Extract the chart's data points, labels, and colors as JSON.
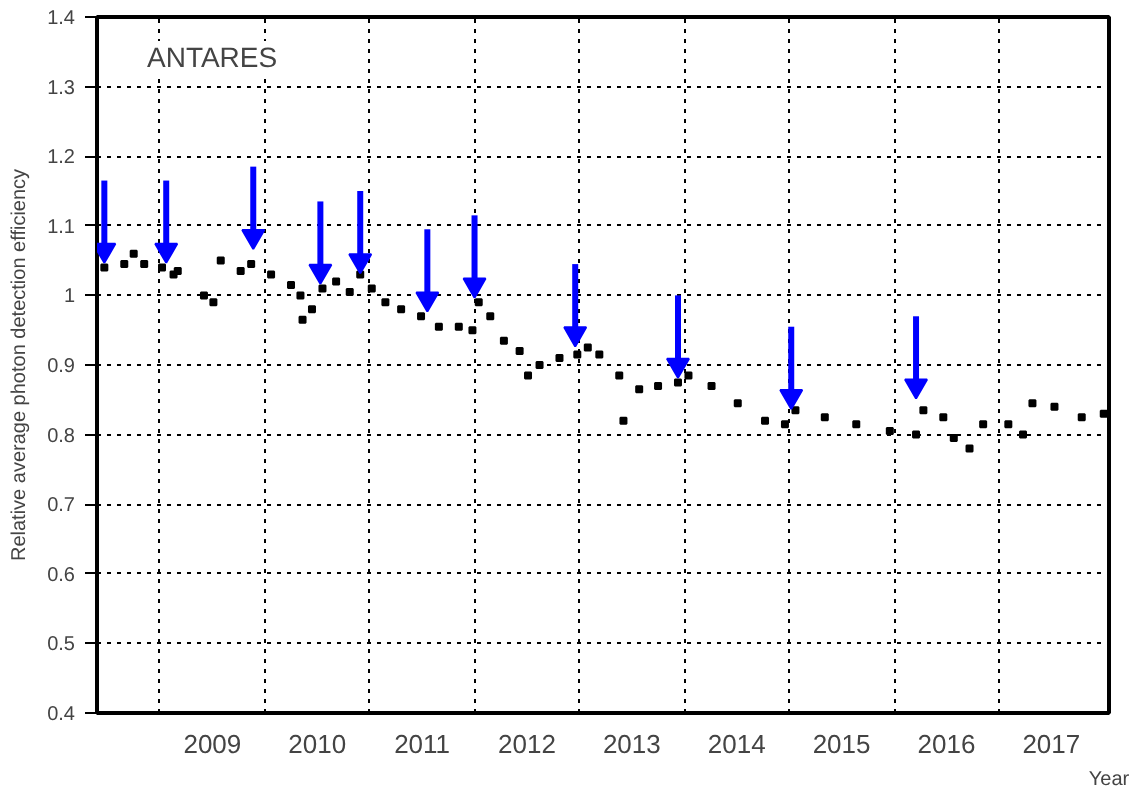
{
  "chart_data": {
    "type": "scatter",
    "annotations": [
      "ANTARES"
    ],
    "xlabel": "Year",
    "ylabel": "Relative average photon detection efficiency",
    "xlim": [
      2008.4,
      2018.05
    ],
    "ylim": [
      0.4,
      1.4
    ],
    "yticks": [
      0.4,
      0.5,
      0.6,
      0.7,
      0.8,
      0.9,
      1,
      1.1,
      1.2,
      1.3,
      1.4
    ],
    "xticks": [
      {
        "value": 2009,
        "label": null
      },
      {
        "value": 2009.5,
        "label": "2009"
      },
      {
        "value": 2010,
        "label": null
      },
      {
        "value": 2010.5,
        "label": "2010"
      },
      {
        "value": 2011,
        "label": null
      },
      {
        "value": 2011.5,
        "label": "2011"
      },
      {
        "value": 2012,
        "label": null
      },
      {
        "value": 2012.5,
        "label": "2012"
      },
      {
        "value": 2013,
        "label": null
      },
      {
        "value": 2013.5,
        "label": "2013"
      },
      {
        "value": 2014,
        "label": null
      },
      {
        "value": 2014.5,
        "label": "2014"
      },
      {
        "value": 2015,
        "label": null
      },
      {
        "value": 2015.5,
        "label": "2015"
      },
      {
        "value": 2016,
        "label": null
      },
      {
        "value": 2016.5,
        "label": "2016"
      },
      {
        "value": 2017,
        "label": null
      },
      {
        "value": 2017.5,
        "label": "2017"
      }
    ],
    "grid": true,
    "marker": "square",
    "series": [
      {
        "color": "#000000",
        "x": [
          2008.47,
          2008.66,
          2008.75,
          2008.85,
          2009.02,
          2009.13,
          2009.17,
          2009.42,
          2009.51,
          2009.58,
          2009.77,
          2009.87,
          2010.06,
          2010.25,
          2010.34,
          2010.36,
          2010.45,
          2010.55,
          2010.68,
          2010.81,
          2010.91,
          2011.02,
          2011.15,
          2011.3,
          2011.49,
          2011.66,
          2011.85,
          2011.98,
          2012.04,
          2012.15,
          2012.28,
          2012.43,
          2012.51,
          2012.62,
          2012.81,
          2012.98,
          2013.08,
          2013.19,
          2013.38,
          2013.42,
          2013.57,
          2013.75,
          2013.94,
          2014.04,
          2014.26,
          2014.51,
          2014.77,
          2014.96,
          2015.06,
          2015.34,
          2015.64,
          2015.96,
          2016.21,
          2016.28,
          2016.47,
          2016.57,
          2016.72,
          2016.85,
          2017.09,
          2017.23,
          2017.32,
          2017.53,
          2017.79,
          2018.0
        ],
        "values": [
          1.04,
          1.045,
          1.06,
          1.045,
          1.04,
          1.03,
          1.035,
          1.0,
          0.99,
          1.05,
          1.035,
          1.045,
          1.03,
          1.015,
          1.0,
          0.965,
          0.98,
          1.01,
          1.02,
          1.005,
          1.03,
          1.01,
          0.99,
          0.98,
          0.97,
          0.955,
          0.955,
          0.95,
          0.99,
          0.97,
          0.935,
          0.92,
          0.885,
          0.9,
          0.91,
          0.915,
          0.925,
          0.915,
          0.885,
          0.82,
          0.865,
          0.87,
          0.875,
          0.885,
          0.87,
          0.845,
          0.82,
          0.815,
          0.835,
          0.825,
          0.815,
          0.805,
          0.8,
          0.835,
          0.825,
          0.795,
          0.78,
          0.815,
          0.815,
          0.8,
          0.845,
          0.84,
          0.825,
          0.83
        ]
      },
      {
        "type": "scatter",
        "marker": "triangle",
        "color": "#0000ff",
        "x": [
          2008.47,
          2009.06,
          2009.89,
          2010.53,
          2010.91,
          2011.55,
          2012.0,
          2012.96,
          2013.94,
          2015.02,
          2016.21
        ],
        "values": [
          1.065,
          1.065,
          1.085,
          1.035,
          1.05,
          0.995,
          1.015,
          0.945,
          0.9,
          0.855,
          0.87
        ],
        "errors": [
          [
            1.065,
            1.165
          ],
          [
            1.065,
            1.165
          ],
          [
            1.085,
            1.185
          ],
          [
            1.035,
            1.135
          ],
          [
            1.05,
            1.15
          ],
          [
            0.995,
            1.095
          ],
          [
            1.015,
            1.115
          ],
          [
            0.945,
            1.045
          ],
          [
            0.9,
            1.0
          ],
          [
            0.855,
            0.955
          ],
          [
            0.87,
            0.97
          ]
        ]
      }
    ]
  }
}
